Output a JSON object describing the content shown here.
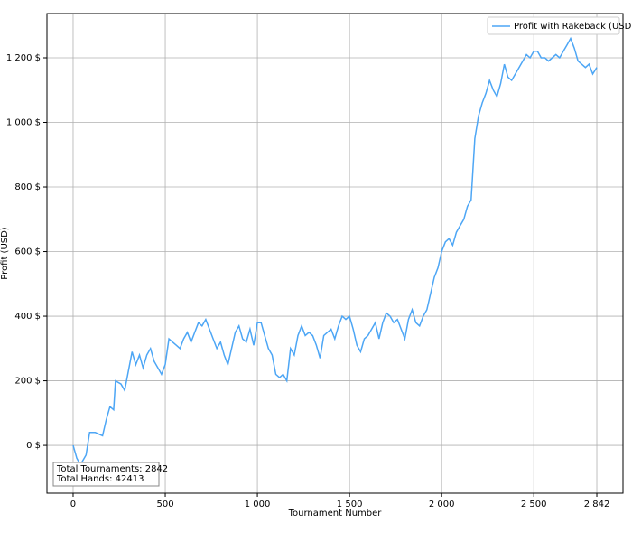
{
  "chart_data": {
    "type": "line",
    "xlabel": "Tournament Number",
    "ylabel": "Profit (USD)",
    "annotations": [
      "Total Tournaments: 2842",
      "Total Hands: 42413"
    ],
    "legend": "upper right",
    "grid": true,
    "xlim": [
      -142,
      2984
    ],
    "ylim": [
      -148,
      1337
    ],
    "xticks": [
      0,
      500,
      {
        "value": 1000,
        "label": "1 000"
      },
      {
        "value": 1500,
        "label": "1 500"
      },
      {
        "value": 2000,
        "label": "2 000"
      },
      {
        "value": 2500,
        "label": "2 500"
      },
      {
        "value": 2842,
        "label": "2 842"
      }
    ],
    "yticks": [
      {
        "value": 0,
        "label": "0 $"
      },
      {
        "value": 200,
        "label": "200 $"
      },
      {
        "value": 400,
        "label": "400 $"
      },
      {
        "value": 600,
        "label": "600 $"
      },
      {
        "value": 800,
        "label": "800 $"
      },
      {
        "value": 1000,
        "label": "1 000 $"
      },
      {
        "value": 1200,
        "label": "1 200 $"
      }
    ],
    "x": [
      0,
      20,
      40,
      70,
      90,
      120,
      160,
      180,
      200,
      220,
      230,
      260,
      280,
      300,
      320,
      340,
      360,
      380,
      400,
      420,
      440,
      460,
      480,
      500,
      520,
      540,
      560,
      580,
      600,
      620,
      640,
      660,
      680,
      700,
      720,
      740,
      760,
      780,
      800,
      820,
      840,
      860,
      880,
      900,
      920,
      940,
      960,
      980,
      1000,
      1020,
      1040,
      1060,
      1080,
      1100,
      1120,
      1140,
      1160,
      1180,
      1200,
      1220,
      1240,
      1260,
      1280,
      1300,
      1320,
      1340,
      1360,
      1380,
      1400,
      1420,
      1440,
      1460,
      1480,
      1500,
      1520,
      1540,
      1560,
      1580,
      1600,
      1620,
      1640,
      1660,
      1680,
      1700,
      1720,
      1740,
      1760,
      1780,
      1800,
      1820,
      1840,
      1860,
      1880,
      1900,
      1920,
      1940,
      1960,
      1980,
      2000,
      2020,
      2040,
      2060,
      2080,
      2100,
      2120,
      2140,
      2160,
      2180,
      2200,
      2220,
      2240,
      2260,
      2280,
      2300,
      2320,
      2340,
      2360,
      2380,
      2400,
      2420,
      2440,
      2460,
      2480,
      2500,
      2520,
      2540,
      2560,
      2580,
      2600,
      2620,
      2640,
      2660,
      2680,
      2700,
      2720,
      2740,
      2760,
      2780,
      2800,
      2820,
      2842
    ],
    "series": [
      {
        "name": "Profit with Rakeback (USD)",
        "color": "#4da6f5",
        "values": [
          0,
          -40,
          -60,
          -30,
          40,
          40,
          30,
          80,
          120,
          110,
          200,
          190,
          170,
          230,
          290,
          250,
          280,
          240,
          280,
          300,
          260,
          240,
          220,
          250,
          330,
          320,
          310,
          300,
          330,
          350,
          320,
          350,
          380,
          370,
          390,
          360,
          330,
          300,
          320,
          280,
          250,
          300,
          350,
          370,
          330,
          320,
          360,
          310,
          380,
          380,
          340,
          300,
          280,
          220,
          210,
          220,
          200,
          300,
          280,
          340,
          370,
          340,
          350,
          340,
          310,
          270,
          340,
          350,
          360,
          330,
          370,
          400,
          390,
          400,
          360,
          310,
          290,
          330,
          340,
          360,
          380,
          330,
          380,
          410,
          400,
          380,
          390,
          360,
          330,
          390,
          420,
          380,
          370,
          400,
          420,
          470,
          520,
          550,
          600,
          630,
          640,
          620,
          660,
          680,
          700,
          740,
          760,
          950,
          1020,
          1060,
          1090,
          1130,
          1100,
          1080,
          1120,
          1180,
          1140,
          1130,
          1150,
          1170,
          1190,
          1210,
          1200,
          1220,
          1220,
          1200,
          1200,
          1190,
          1200,
          1210,
          1200,
          1220,
          1240,
          1260,
          1230,
          1190,
          1180,
          1170,
          1180,
          1150,
          1170
        ]
      }
    ]
  }
}
